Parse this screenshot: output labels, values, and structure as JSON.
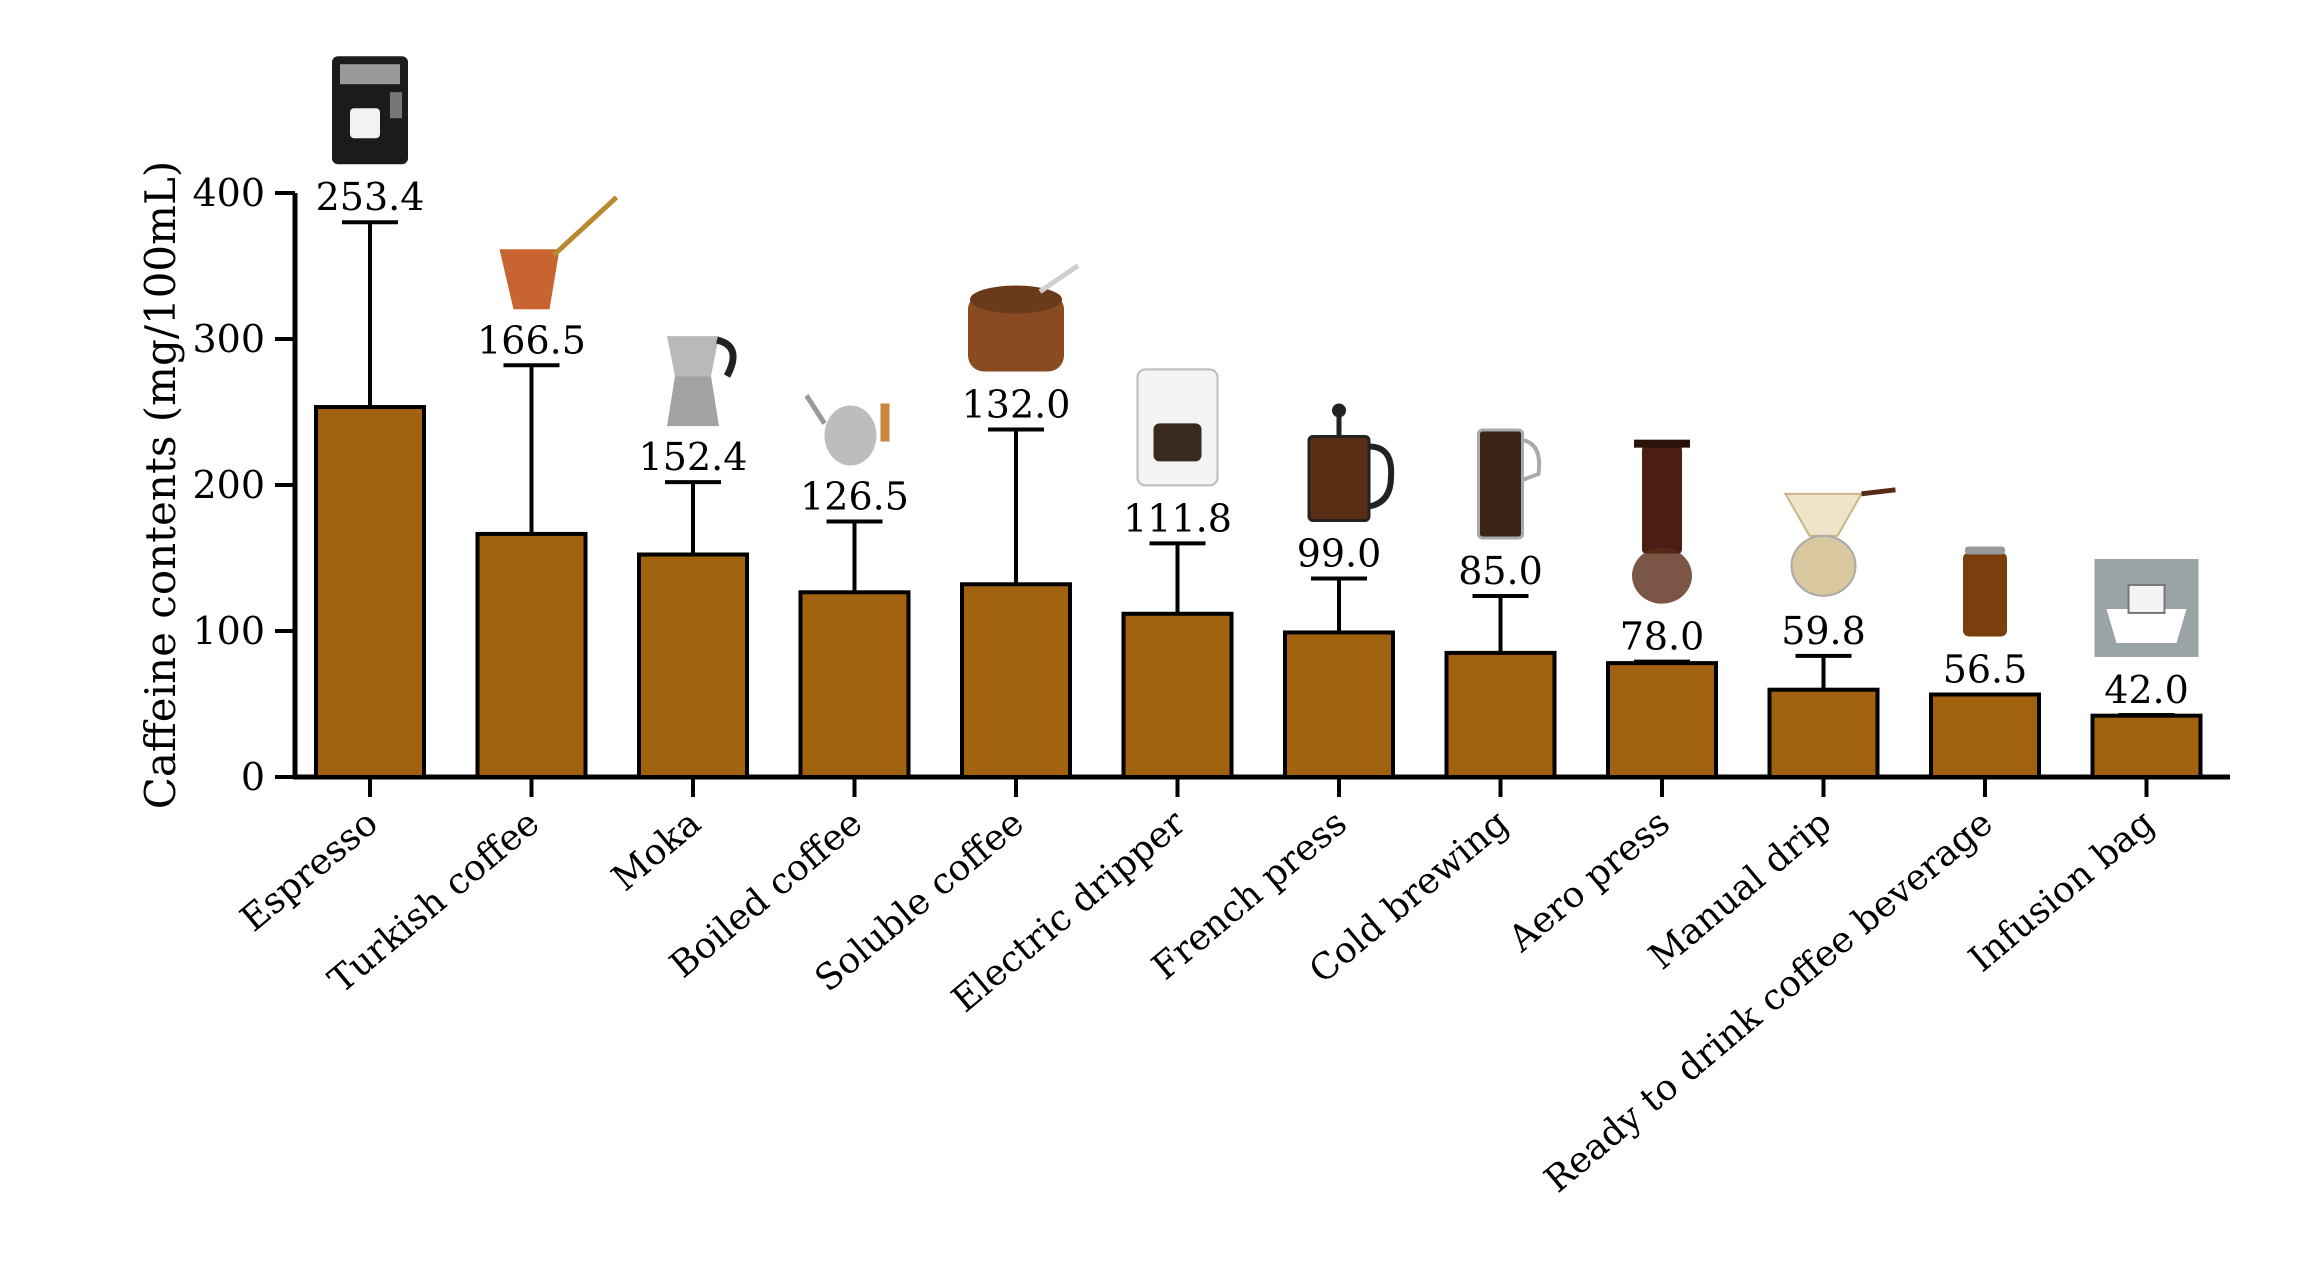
{
  "chart_data": {
    "type": "bar",
    "ylabel": "Caffeine contents (mg/100mL)",
    "xlabel": "",
    "ylim": [
      0,
      400
    ],
    "yticks": [
      0,
      100,
      200,
      300,
      400
    ],
    "grid": false,
    "legend": "none",
    "bar_color": "#A0620F",
    "categories": [
      "Espresso",
      "Turkish coffee",
      "Moka",
      "Boiled coffee",
      "Soluble coffee",
      "Electric dripper",
      "French press",
      "Cold brewing",
      "Aero press",
      "Manual drip",
      "Ready to drink coffee beverage",
      "Infusion bag"
    ],
    "values": [
      253.4,
      166.5,
      152.4,
      126.5,
      132.0,
      111.8,
      99.0,
      85.0,
      78.0,
      59.8,
      56.5,
      42.0
    ],
    "value_labels": [
      "253.4",
      "166.5",
      "152.4",
      "126.5",
      "132.0",
      "111.8",
      "99.0",
      "85.0",
      "78.0",
      "59.8",
      "56.5",
      "42.0"
    ],
    "error_upper": [
      380,
      282,
      202,
      175,
      238,
      160,
      136,
      124,
      79,
      83,
      56.5,
      42.5
    ],
    "icons": [
      "espresso-machine-icon",
      "cezve-icon",
      "moka-pot-icon",
      "kettle-icon",
      "instant-coffee-jar-icon",
      "drip-coffee-maker-icon",
      "french-press-icon",
      "cold-brew-pitcher-icon",
      "aeropress-icon",
      "pour-over-dripper-icon",
      "coffee-can-icon",
      "drip-bag-cup-icon"
    ]
  }
}
